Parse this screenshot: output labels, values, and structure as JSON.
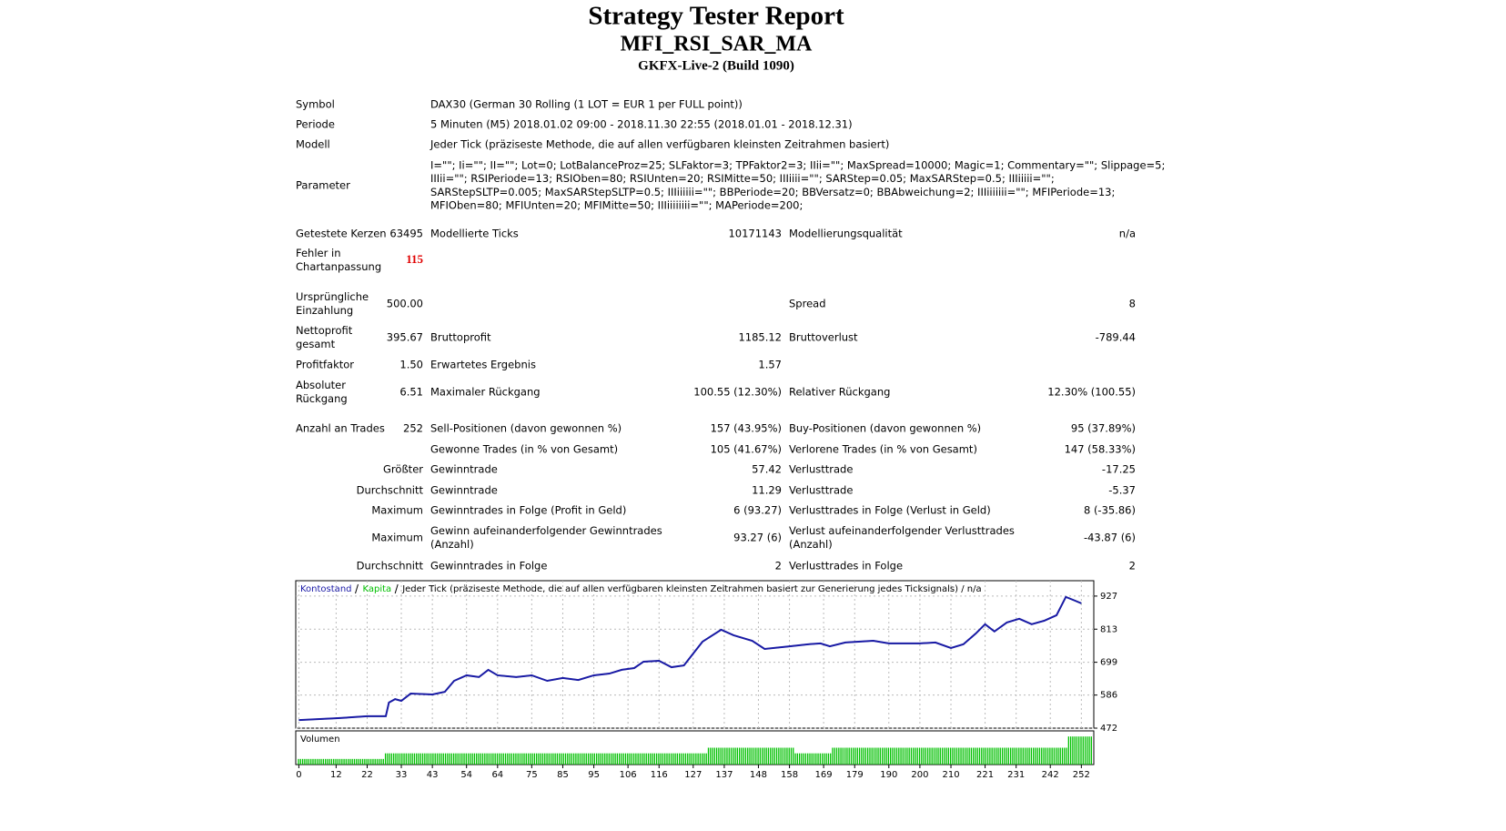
{
  "header": {
    "title": "Strategy Tester Report",
    "subtitle": "MFI_RSI_SAR_MA",
    "server": "GKFX-Live-2 (Build 1090)"
  },
  "info": [
    [
      "Symbol",
      "DAX30 (German 30 Rolling (1 LOT = EUR 1 per FULL point))"
    ],
    [
      "Periode",
      "5 Minuten (M5) 2018.01.02 09:00 - 2018.11.30 22:55 (2018.01.01 - 2018.12.31)"
    ],
    [
      "Modell",
      "Jeder Tick (präziseste Methode, die auf allen verfügbaren kleinsten Zeitrahmen basiert)"
    ],
    [
      "Parameter",
      [
        "I=\"\"; Ii=\"\"; II=\"\"; Lot=0; LotBalanceProz=25; SLFaktor=3; TPFaktor2=3; IIii=\"\"; MaxSpread=10000; Magic=1; Commentary=\"\"; Slippage=5;",
        "IIIii=\"\"; RSIPeriode=13; RSIOben=80; RSIUnten=20; RSIMitte=50; IIIiiii=\"\"; SARStep=0.05; MaxSARStep=0.5; IIIiiiii=\"\";",
        "SARStepSLTP=0.005; MaxSARStepSLTP=0.5; IIIiiiiii=\"\"; BBPeriode=20; BBVersatz=0; BBAbweichung=2; IIIiiiiiii=\"\"; MFIPeriode=13;",
        "MFIOben=80; MFIUnten=20; MFIMitte=50; IIIiiiiiiii=\"\"; MAPeriode=200;"
      ]
    ]
  ],
  "stats": [
    [
      "Getestete Kerzen",
      "63495",
      "Modellierte Ticks",
      "10171143",
      "Modellierungsqualität",
      "n/a"
    ],
    [
      [
        "Fehler in",
        "Chartanpassung"
      ],
      "115",
      null,
      null,
      null,
      null
    ],
    [
      [
        "Ursprüngliche",
        "Einzahlung"
      ],
      "500.00",
      null,
      null,
      "Spread",
      "8"
    ],
    [
      [
        "Nettoprofit",
        "gesamt"
      ],
      "395.67",
      "Bruttoprofit",
      "1185.12",
      "Bruttoverlust",
      "-789.44"
    ],
    [
      "Profitfaktor",
      "1.50",
      "Erwartetes Ergebnis",
      "1.57",
      null,
      null
    ],
    [
      [
        "Absoluter",
        "Rückgang"
      ],
      "6.51",
      "Maximaler Rückgang",
      "100.55 (12.30%)",
      "Relativer Rückgang",
      "12.30% (100.55)"
    ],
    [
      "Anzahl an Trades",
      "252",
      "Sell-Positionen (davon gewonnen %)",
      "157 (43.95%)",
      "Buy-Positionen (davon gewonnen %)",
      "95 (37.89%)"
    ],
    [
      null,
      null,
      "Gewonne Trades (in % von Gesamt)",
      "105 (41.67%)",
      "Verlorene Trades (in % von Gesamt)",
      "147 (58.33%)"
    ],
    [
      null,
      "Größter",
      "Gewinntrade",
      "57.42",
      "Verlusttrade",
      "-17.25"
    ],
    [
      null,
      "Durchschnitt",
      "Gewinntrade",
      "11.29",
      "Verlusttrade",
      "-5.37"
    ],
    [
      null,
      "Maximum",
      "Gewinntrades in Folge (Profit in Geld)",
      "6 (93.27)",
      "Verlusttrades in Folge (Verlust in Geld)",
      "8 (-35.86)"
    ],
    [
      null,
      "Maximum",
      [
        "Gewinn aufeinanderfolgender Gewinntrades",
        "(Anzahl)"
      ],
      "93.27 (6)",
      [
        "Verlust aufeinanderfolgender Verlusttrades",
        "(Anzahl)"
      ],
      "-43.87 (6)"
    ],
    [
      null,
      "Durchschnitt",
      "Gewinntrades in Folge",
      "2",
      "Verlusttrades in Folge",
      "2"
    ]
  ],
  "chart_data": {
    "type": "line",
    "caption": "Jeder Tick (präziseste Methode, die auf allen verfügbaren kleinsten Zeitrahmen basiert zur Generierung jedes Ticksignals) / n/a",
    "x": [
      0,
      12,
      22,
      28,
      29,
      31,
      33,
      36,
      43,
      47,
      50,
      54,
      58,
      61,
      64,
      70,
      75,
      80,
      85,
      90,
      95,
      100,
      104,
      108,
      111,
      116,
      120,
      124,
      130,
      136,
      140,
      146,
      150,
      158,
      164,
      168,
      171,
      176,
      185,
      190,
      200,
      205,
      210,
      214,
      218,
      221,
      224,
      228,
      232,
      236,
      240,
      244,
      247,
      250,
      252
    ],
    "series": [
      {
        "name": "Kapita",
        "color": "#00c000",
        "values": [
          500,
          506,
          513,
          513,
          560,
          572,
          566,
          591,
          588,
          597,
          635,
          654,
          648,
          673,
          654,
          648,
          654,
          635,
          645,
          638,
          654,
          660,
          673,
          679,
          701,
          704,
          682,
          688,
          770,
          811,
          792,
          773,
          745,
          754,
          761,
          764,
          754,
          767,
          773,
          764,
          764,
          767,
          748,
          761,
          798,
          830,
          805,
          836,
          849,
          830,
          842,
          861,
          924,
          911,
          902
        ]
      },
      {
        "name": "Kontostand",
        "color": "#1a1aa6",
        "values": [
          500,
          506,
          513,
          513,
          560,
          572,
          566,
          591,
          588,
          597,
          635,
          654,
          648,
          673,
          654,
          648,
          654,
          635,
          645,
          638,
          654,
          660,
          673,
          679,
          701,
          704,
          682,
          688,
          770,
          811,
          792,
          773,
          745,
          754,
          761,
          764,
          754,
          767,
          773,
          764,
          764,
          767,
          748,
          761,
          798,
          830,
          805,
          836,
          849,
          830,
          842,
          861,
          924,
          911,
          902
        ]
      }
    ],
    "xlim": [
      -1,
      256
    ],
    "xticks": [
      0,
      12,
      22,
      33,
      43,
      54,
      64,
      75,
      85,
      95,
      106,
      116,
      127,
      137,
      148,
      158,
      169,
      179,
      190,
      200,
      210,
      221,
      231,
      242,
      252
    ],
    "ylim": [
      472,
      980
    ],
    "yticks": [
      472,
      586,
      699,
      813,
      927
    ],
    "grid": true,
    "volume": {
      "label": "Volumen",
      "color": "#00c000",
      "ylim": [
        0,
        6
      ],
      "x": [
        0,
        4,
        8,
        12,
        16,
        20,
        24,
        28,
        32,
        36,
        40,
        44,
        48,
        52,
        56,
        60,
        64,
        68,
        72,
        76,
        80,
        84,
        88,
        92,
        96,
        100,
        104,
        108,
        112,
        116,
        120,
        124,
        128,
        132,
        136,
        140,
        144,
        148,
        152,
        156,
        160,
        164,
        168,
        172,
        176,
        180,
        184,
        188,
        192,
        196,
        200,
        204,
        208,
        212,
        216,
        220,
        224,
        228,
        232,
        236,
        240,
        244,
        248,
        252
      ],
      "values": [
        1,
        1,
        1,
        1,
        1,
        1,
        1,
        2,
        2,
        2,
        2,
        2,
        2,
        2,
        2,
        2,
        2,
        2,
        2,
        2,
        2,
        2,
        2,
        2,
        2,
        2,
        2,
        2,
        2,
        2,
        2,
        2,
        2,
        3,
        3,
        3,
        3,
        3,
        3,
        3,
        2,
        2,
        2,
        3,
        3,
        3,
        3,
        3,
        3,
        3,
        3,
        3,
        3,
        3,
        3,
        3,
        3,
        3,
        3,
        3,
        3,
        3,
        5,
        5
      ]
    }
  }
}
